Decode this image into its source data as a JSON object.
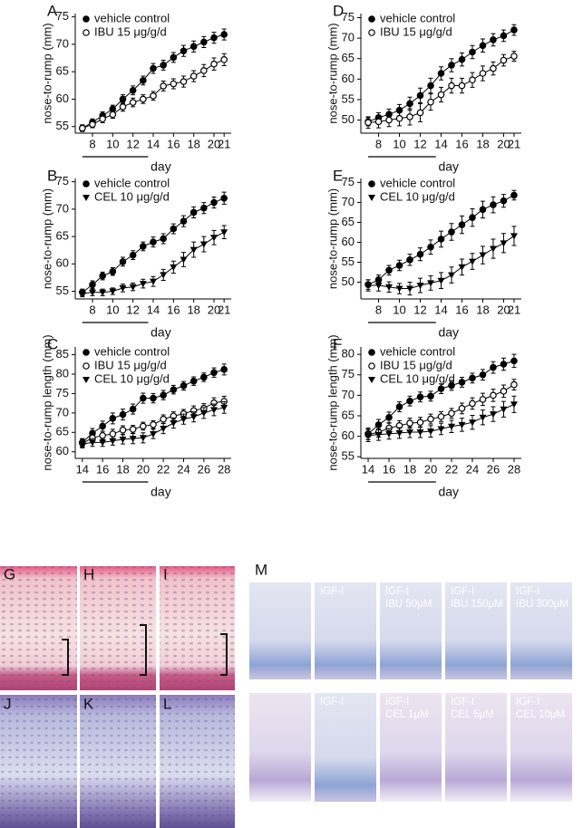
{
  "chart_data": [
    {
      "type": "line",
      "panel": "A",
      "y_label": "nose-to-rump (mm)",
      "x_label": "day",
      "x": [
        7,
        8,
        9,
        10,
        11,
        12,
        13,
        14,
        15,
        16,
        17,
        18,
        19,
        20,
        21
      ],
      "xlim": [
        6.3,
        21.7
      ],
      "xticks": [
        8,
        10,
        12,
        14,
        16,
        18,
        20,
        21
      ],
      "ylim": [
        53.8,
        75.6
      ],
      "yticks": [
        55,
        60,
        65,
        70,
        75
      ],
      "period": [
        7,
        13
      ],
      "legend": "upper left",
      "series": [
        {
          "name": "vehicle control",
          "color": "#000000",
          "marker": "filled-circle",
          "values": [
            54.7,
            55.8,
            57.0,
            58.2,
            60.0,
            61.6,
            63.4,
            65.6,
            66.2,
            67.6,
            68.8,
            69.6,
            70.4,
            71.2,
            71.8
          ],
          "errors": [
            0.6,
            0.6,
            0.7,
            0.7,
            0.8,
            0.8,
            0.8,
            0.9,
            0.9,
            0.9,
            1.0,
            1.0,
            1.0,
            1.0,
            1.0
          ]
        },
        {
          "name": "IBU 15 μg/g/d",
          "color": "#000000",
          "marker": "open-circle",
          "values": [
            54.7,
            55.4,
            56.4,
            57.2,
            58.6,
            59.4,
            60.0,
            60.6,
            62.4,
            62.8,
            63.2,
            64.2,
            65.2,
            66.4,
            67.2
          ],
          "errors": [
            0.6,
            0.6,
            0.7,
            0.7,
            0.8,
            0.8,
            0.8,
            0.8,
            0.9,
            0.9,
            1.0,
            1.0,
            1.1,
            1.1,
            1.1
          ]
        }
      ]
    },
    {
      "type": "line",
      "panel": "B",
      "y_label": "nose-to-rump (mm)",
      "x_label": "day",
      "x": [
        7,
        8,
        9,
        10,
        11,
        12,
        13,
        14,
        15,
        16,
        17,
        18,
        19,
        20,
        21
      ],
      "xlim": [
        6.3,
        21.7
      ],
      "xticks": [
        8,
        10,
        12,
        14,
        16,
        18,
        20,
        21
      ],
      "ylim": [
        53.6,
        75.6
      ],
      "yticks": [
        55,
        60,
        65,
        70,
        75
      ],
      "period": [
        7,
        13
      ],
      "legend": "upper left",
      "series": [
        {
          "name": "vehicle control",
          "color": "#000000",
          "marker": "filled-circle",
          "values": [
            54.8,
            56.2,
            57.8,
            58.6,
            60.4,
            61.6,
            63.2,
            64.0,
            64.6,
            66.4,
            67.8,
            69.4,
            70.2,
            71.2,
            72.0
          ],
          "errors": [
            0.6,
            0.7,
            0.7,
            0.7,
            0.8,
            0.8,
            0.8,
            0.9,
            0.9,
            0.9,
            1.0,
            1.0,
            1.0,
            1.0,
            1.1
          ]
        },
        {
          "name": "CEL 10 μg/g/d",
          "color": "#000000",
          "marker": "triangle-down",
          "values": [
            54.6,
            54.8,
            54.8,
            55.0,
            55.6,
            55.8,
            56.4,
            56.8,
            58.0,
            59.4,
            60.8,
            62.6,
            63.6,
            64.8,
            65.8
          ],
          "errors": [
            0.6,
            0.6,
            0.6,
            0.6,
            0.7,
            0.7,
            0.8,
            0.9,
            1.0,
            1.1,
            1.3,
            1.4,
            1.4,
            1.3,
            1.2
          ]
        }
      ]
    },
    {
      "type": "line",
      "panel": "C",
      "y_label": "nose-to-rump length (mm)",
      "x_label": "day",
      "x": [
        14,
        15,
        16,
        17,
        18,
        19,
        20,
        21,
        22,
        23,
        24,
        25,
        26,
        27,
        28
      ],
      "xlim": [
        13.3,
        28.7
      ],
      "xticks": [
        14,
        16,
        18,
        20,
        22,
        24,
        26,
        28
      ],
      "ylim": [
        58.3,
        87.0
      ],
      "yticks": [
        60,
        65,
        70,
        75,
        80,
        85
      ],
      "period": [
        14,
        20
      ],
      "legend": "upper left",
      "series": [
        {
          "name": "vehicle control",
          "color": "#000000",
          "marker": "filled-circle",
          "values": [
            62.4,
            64.8,
            66.6,
            68.6,
            69.6,
            71.0,
            73.8,
            73.8,
            74.6,
            76.0,
            77.0,
            78.2,
            79.2,
            80.4,
            81.2
          ],
          "errors": [
            1.0,
            1.2,
            1.3,
            1.4,
            1.4,
            1.3,
            1.3,
            1.2,
            1.2,
            1.1,
            1.1,
            1.1,
            1.1,
            1.2,
            1.4
          ]
        },
        {
          "name": "IBU 15 μg/g/d",
          "color": "#000000",
          "marker": "open-circle",
          "values": [
            62.2,
            63.6,
            64.2,
            64.6,
            65.6,
            65.8,
            66.6,
            67.0,
            68.4,
            69.2,
            69.8,
            70.6,
            71.2,
            72.6,
            73.0
          ],
          "errors": [
            1.0,
            1.1,
            1.1,
            1.2,
            1.1,
            1.0,
            1.0,
            1.0,
            1.1,
            1.1,
            1.1,
            1.2,
            1.2,
            1.3,
            1.3
          ]
        },
        {
          "name": "CEL 10 μg/g/d",
          "color": "#000000",
          "marker": "triangle-down",
          "values": [
            62.0,
            62.4,
            62.4,
            62.8,
            63.2,
            63.4,
            63.6,
            64.6,
            66.0,
            67.4,
            68.4,
            69.0,
            70.0,
            70.8,
            71.4
          ],
          "errors": [
            1.0,
            1.0,
            1.0,
            1.1,
            1.2,
            1.3,
            1.3,
            1.2,
            1.3,
            1.3,
            1.3,
            1.3,
            1.4,
            1.5,
            1.5
          ]
        }
      ]
    },
    {
      "type": "line",
      "panel": "D",
      "y_label": "nose-to-rump (mm)",
      "x_label": "day",
      "x": [
        7,
        8,
        9,
        10,
        11,
        12,
        13,
        14,
        15,
        16,
        17,
        18,
        19,
        20,
        21
      ],
      "xlim": [
        6.3,
        21.7
      ],
      "xticks": [
        8,
        10,
        12,
        14,
        16,
        18,
        20,
        21
      ],
      "ylim": [
        46.8,
        76.0
      ],
      "yticks": [
        50,
        55,
        60,
        65,
        70,
        75
      ],
      "period": [
        7,
        13
      ],
      "legend": "upper left",
      "series": [
        {
          "name": "vehicle control",
          "color": "#000000",
          "marker": "filled-circle",
          "values": [
            49.6,
            50.6,
            51.4,
            52.4,
            54.0,
            56.0,
            58.4,
            61.4,
            63.4,
            64.8,
            66.6,
            68.2,
            69.6,
            70.6,
            72.0
          ],
          "errors": [
            1.0,
            1.2,
            1.3,
            1.4,
            1.6,
            1.8,
            1.8,
            1.6,
            1.6,
            1.6,
            1.6,
            1.6,
            1.5,
            1.4,
            1.3
          ]
        },
        {
          "name": "IBU 15 μg/g/d",
          "color": "#000000",
          "marker": "open-circle",
          "values": [
            49.4,
            49.6,
            50.0,
            50.4,
            50.8,
            51.8,
            54.4,
            56.2,
            58.4,
            58.4,
            59.8,
            61.4,
            62.6,
            64.6,
            65.6
          ],
          "errors": [
            1.4,
            1.5,
            1.6,
            1.8,
            2.0,
            2.2,
            2.0,
            1.8,
            1.8,
            1.8,
            1.8,
            1.8,
            1.6,
            1.4,
            1.2
          ]
        }
      ]
    },
    {
      "type": "line",
      "panel": "E",
      "y_label": "nose-to-rump (mm)",
      "x_label": "day",
      "x": [
        7,
        8,
        9,
        10,
        11,
        12,
        13,
        14,
        15,
        16,
        17,
        18,
        19,
        20,
        21
      ],
      "xlim": [
        6.3,
        21.7
      ],
      "xticks": [
        8,
        10,
        12,
        14,
        16,
        18,
        20,
        21
      ],
      "ylim": [
        45.8,
        76.0
      ],
      "yticks": [
        50,
        55,
        60,
        65,
        70,
        75
      ],
      "period": [
        7,
        13
      ],
      "legend": "upper left",
      "series": [
        {
          "name": "vehicle control",
          "color": "#000000",
          "marker": "filled-circle",
          "values": [
            49.4,
            50.6,
            53.0,
            54.2,
            55.6,
            57.0,
            58.8,
            60.8,
            62.6,
            64.4,
            66.2,
            68.2,
            69.4,
            70.4,
            71.8
          ],
          "errors": [
            1.2,
            1.2,
            1.2,
            1.3,
            1.4,
            1.6,
            1.8,
            2.0,
            2.1,
            2.2,
            2.2,
            2.1,
            2.0,
            1.6,
            1.2
          ]
        },
        {
          "name": "CEL 10 μg/g/d",
          "color": "#000000",
          "marker": "triangle-down",
          "values": [
            49.2,
            49.2,
            48.8,
            48.4,
            48.4,
            49.2,
            49.8,
            50.4,
            51.8,
            53.8,
            55.2,
            56.8,
            58.4,
            59.8,
            61.6
          ],
          "errors": [
            1.4,
            1.4,
            1.3,
            1.3,
            1.6,
            1.8,
            1.8,
            2.0,
            2.0,
            2.0,
            2.0,
            2.2,
            2.4,
            2.4,
            2.4
          ]
        }
      ]
    },
    {
      "type": "line",
      "panel": "F",
      "y_label": "nose-to-rump length (mm)",
      "x_label": "day",
      "x": [
        14,
        15,
        16,
        17,
        18,
        19,
        20,
        21,
        22,
        23,
        24,
        25,
        26,
        27,
        28
      ],
      "xlim": [
        13.3,
        28.7
      ],
      "xticks": [
        14,
        16,
        18,
        20,
        22,
        24,
        26,
        28
      ],
      "ylim": [
        54.6,
        81.8
      ],
      "yticks": [
        55,
        60,
        65,
        70,
        75,
        80
      ],
      "period": [
        14,
        20
      ],
      "legend": "upper left",
      "series": [
        {
          "name": "vehicle control",
          "color": "#000000",
          "marker": "filled-circle",
          "values": [
            60.6,
            62.8,
            64.6,
            67.2,
            68.6,
            69.6,
            69.8,
            71.6,
            72.4,
            73.2,
            74.2,
            75.0,
            76.8,
            77.6,
            78.4
          ],
          "errors": [
            1.4,
            1.3,
            1.3,
            1.2,
            1.2,
            1.2,
            1.2,
            1.2,
            1.2,
            1.2,
            1.2,
            1.3,
            1.4,
            1.5,
            1.6
          ]
        },
        {
          "name": "IBU 15 μg/g/d",
          "color": "#000000",
          "marker": "open-circle",
          "values": [
            60.4,
            61.0,
            62.0,
            62.6,
            63.2,
            63.4,
            64.2,
            64.8,
            65.6,
            66.8,
            68.0,
            69.0,
            70.0,
            71.0,
            72.6
          ],
          "errors": [
            1.2,
            1.2,
            1.2,
            1.2,
            1.2,
            1.2,
            1.2,
            1.2,
            1.2,
            1.3,
            1.4,
            1.5,
            1.5,
            1.5,
            1.3
          ]
        },
        {
          "name": "CEL 10 μg/g/d",
          "color": "#000000",
          "marker": "triangle-down",
          "values": [
            60.2,
            60.4,
            60.6,
            60.8,
            61.0,
            61.0,
            61.2,
            61.8,
            62.4,
            62.8,
            63.4,
            64.6,
            65.4,
            66.6,
            67.8
          ],
          "errors": [
            1.5,
            1.4,
            1.3,
            1.3,
            1.3,
            1.3,
            1.4,
            1.4,
            1.5,
            1.6,
            1.7,
            1.8,
            1.8,
            1.9,
            2.0
          ]
        }
      ]
    }
  ],
  "histology": {
    "labels": [
      "G",
      "H",
      "I",
      "J",
      "K",
      "L"
    ]
  },
  "assay": {
    "label": "M",
    "row1": [
      [
        "IGF-I"
      ],
      [
        "IGF-I",
        "IBU 50μM"
      ],
      [
        "IGF-I",
        "IBU 150μM"
      ],
      [
        "IGF-I",
        "IBU 300μM"
      ]
    ],
    "row2": [
      [
        "IGF-I"
      ],
      [
        "IGF-I",
        "CEL 1μM"
      ],
      [
        "IGF-I",
        "CEL 5μM"
      ],
      [
        "IGF-I",
        "CEL 10μM"
      ]
    ]
  }
}
